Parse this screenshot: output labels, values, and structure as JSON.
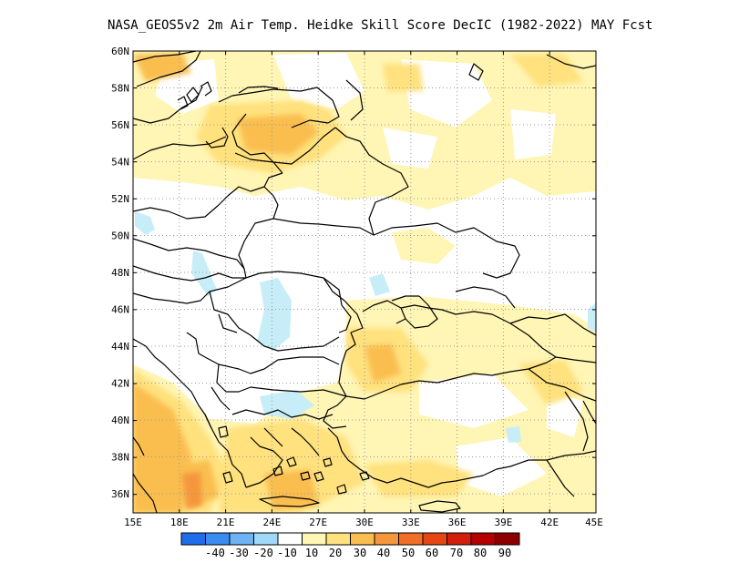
{
  "title": "NASA_GEOS5v2  2m Air Temp. Heidke Skill Score DecIC (1982-2022) MAY Fcst",
  "map": {
    "lon_labels": [
      "15E",
      "18E",
      "21E",
      "24E",
      "27E",
      "30E",
      "33E",
      "36E",
      "39E",
      "42E",
      "45E"
    ],
    "lat_labels": [
      "60N",
      "58N",
      "56N",
      "54N",
      "52N",
      "50N",
      "48N",
      "46N",
      "44N",
      "42N",
      "40N",
      "38N",
      "36N"
    ],
    "grid": "dotted",
    "colors": {
      "land_outline": "#000000",
      "gridline": "#999999"
    }
  },
  "colorbar": {
    "labels": [
      "-40",
      "-30",
      "-20",
      "-10",
      "10",
      "20",
      "30",
      "40",
      "50",
      "60",
      "70",
      "80",
      "90"
    ],
    "colors": [
      "#1e6eeb",
      "#3a8cf0",
      "#6eb4f5",
      "#a0d8fa",
      "#ffffff",
      "#fff5b4",
      "#ffe17d",
      "#fabe50",
      "#f5963c",
      "#f06e28",
      "#e64614",
      "#d21e0a",
      "#b40000",
      "#8c0000"
    ]
  }
}
